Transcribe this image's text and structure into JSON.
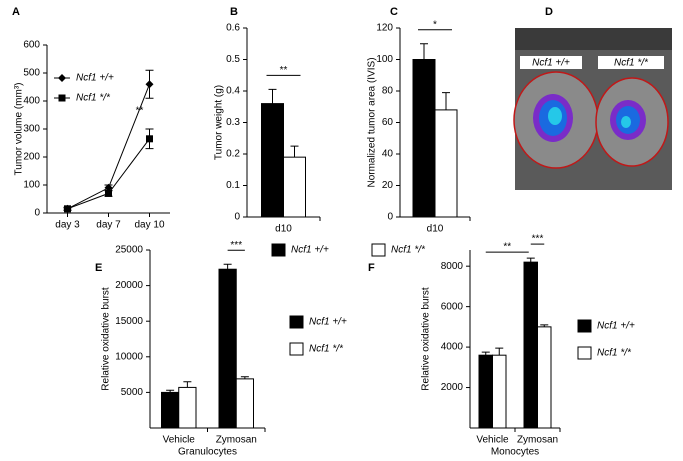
{
  "chart_data": [
    {
      "type": "line",
      "panel": "A",
      "y_label": "Tumor volume (mm³)",
      "categories": [
        "day 3",
        "day 7",
        "day 10"
      ],
      "series": [
        {
          "name": "Ncf1 +/+",
          "color": "#000000",
          "marker": "diamond",
          "values": [
            15,
            90,
            460
          ],
          "errors": [
            5,
            10,
            50
          ]
        },
        {
          "name": "Ncf1 */*",
          "color": "#000000",
          "marker": "square",
          "values": [
            15,
            70,
            265
          ],
          "errors": [
            5,
            10,
            35
          ]
        }
      ],
      "ylim": [
        0,
        600
      ],
      "yticks": [
        0,
        100,
        200,
        300,
        400,
        500,
        600
      ],
      "legend": "upper left",
      "annotations": [
        "**"
      ]
    },
    {
      "type": "bar",
      "panel": "B",
      "y_label": "Tumor weight (g)",
      "categories": [
        "d10"
      ],
      "series": [
        {
          "name": "Ncf1 +/+",
          "color": "#000000",
          "values": [
            0.36
          ],
          "errors": [
            0.045
          ]
        },
        {
          "name": "Ncf1 */*",
          "color": "#ffffff",
          "values": [
            0.19
          ],
          "errors": [
            0.035
          ]
        }
      ],
      "ylim": [
        0,
        0.6
      ],
      "yticks": [
        0,
        0.1,
        0.2,
        0.3,
        0.4,
        0.5,
        0.6
      ],
      "legend": "below",
      "annotations": [
        "**"
      ]
    },
    {
      "type": "bar",
      "panel": "C",
      "y_label": "Normalized tumor area (IVIS)",
      "categories": [
        "d10"
      ],
      "series": [
        {
          "color": "#000000",
          "values": [
            100
          ],
          "errors": [
            10
          ]
        },
        {
          "color": "#ffffff",
          "values": [
            68
          ],
          "errors": [
            11
          ]
        }
      ],
      "ylim": [
        0,
        120
      ],
      "yticks": [
        0,
        20,
        40,
        60,
        80,
        100,
        120
      ],
      "annotations": [
        "*"
      ]
    },
    {
      "type": "bar",
      "panel": "E",
      "y_label": "Relative oxidative burst",
      "x_label": "Granulocytes",
      "categories": [
        "Vehicle",
        "Zymosan"
      ],
      "series": [
        {
          "name": "Ncf1 +/+",
          "color": "#000000",
          "values": [
            5000,
            22300
          ],
          "errors": [
            300,
            700
          ]
        },
        {
          "name": "Ncf1 */*",
          "color": "#ffffff",
          "values": [
            5700,
            6900
          ],
          "errors": [
            800,
            300
          ]
        }
      ],
      "ylim": [
        0,
        25000
      ],
      "yticks": [
        5000,
        10000,
        15000,
        20000,
        25000
      ],
      "legend": "right",
      "annotations": [
        "***"
      ]
    },
    {
      "type": "bar",
      "panel": "F",
      "y_label": "Relative oxidative burst",
      "x_label": "Monocytes",
      "categories": [
        "Vehicle",
        "Zymosan"
      ],
      "series": [
        {
          "name": "Ncf1 +/+",
          "color": "#000000",
          "values": [
            3600,
            8200
          ],
          "errors": [
            150,
            200
          ]
        },
        {
          "name": "Ncf1 */*",
          "color": "#ffffff",
          "values": [
            3600,
            5000
          ],
          "errors": [
            350,
            100
          ]
        }
      ],
      "ylim": [
        0,
        8800
      ],
      "yticks": [
        2000,
        4000,
        6000,
        8000
      ],
      "legend": "right",
      "annotations": [
        "***",
        "**"
      ]
    }
  ],
  "panel_d": {
    "label": "D",
    "labels": [
      "Ncf1 +/+",
      "Ncf1 */*"
    ]
  }
}
